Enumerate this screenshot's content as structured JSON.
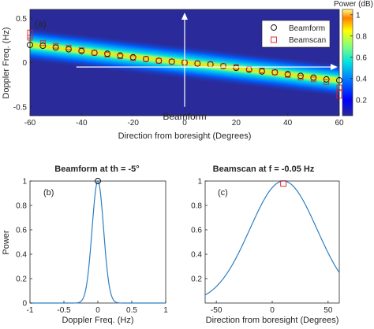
{
  "chart_data": [
    {
      "type": "heatmap",
      "panel_label": "(a)",
      "xlabel": "Direction from boresight (Degrees)",
      "ylabel": "Doppler Freq. (Hz)",
      "xlim": [
        -60,
        60
      ],
      "ylim": [
        -0.6,
        0.6
      ],
      "xticks": [
        -60,
        -40,
        -20,
        0,
        20,
        40,
        60
      ],
      "yticks": [
        -0.5,
        0,
        0.5
      ],
      "colorbar": {
        "title": "Power (dB)",
        "ticks": [
          0.2,
          0.4,
          0.6,
          0.8,
          1
        ],
        "range": [
          0.05,
          1.05
        ]
      },
      "ridge": {
        "x": [
          -60,
          60
        ],
        "y": [
          0.2,
          -0.2
        ]
      },
      "annotations": [
        {
          "text": "Beamform",
          "arrow": "vertical-up",
          "x": 0,
          "y_from": -0.5,
          "y_to": 0.6
        },
        {
          "arrow": "horizontal-right",
          "y": -0.05,
          "x_from": -42,
          "x_to": 60
        }
      ],
      "legend": {
        "location": "top-right",
        "entries": [
          "Beamform",
          "Beamscan"
        ]
      },
      "series": [
        {
          "name": "Beamform",
          "marker": "circle",
          "x": [
            -60,
            -55,
            -50,
            -45,
            -40,
            -35,
            -30,
            -25,
            -20,
            -15,
            -10,
            -5,
            0,
            5,
            10,
            15,
            20,
            25,
            30,
            35,
            40,
            45,
            50,
            55,
            60
          ],
          "y": [
            0.2,
            0.19,
            0.17,
            0.15,
            0.13,
            0.11,
            0.1,
            0.08,
            0.06,
            0.04,
            0.02,
            0.01,
            0,
            -0.01,
            -0.02,
            -0.04,
            -0.06,
            -0.08,
            -0.1,
            -0.11,
            -0.13,
            -0.15,
            -0.17,
            -0.19,
            -0.2
          ]
        },
        {
          "name": "Beamscan",
          "marker": "square",
          "x": [
            -60,
            -55,
            -50,
            -45,
            -40,
            -35,
            -30,
            -25,
            -20,
            -15,
            -10,
            -5,
            0,
            5,
            10,
            15,
            20,
            25,
            30,
            35,
            40,
            45,
            50,
            55,
            60
          ],
          "y": [
            0.28,
            0.22,
            0.19,
            0.17,
            0.14,
            0.11,
            0.09,
            0.07,
            0.05,
            0.04,
            0.02,
            0.01,
            0,
            -0.01,
            -0.02,
            -0.04,
            -0.05,
            -0.07,
            -0.09,
            -0.11,
            -0.14,
            -0.17,
            -0.19,
            -0.22,
            -0.28
          ]
        },
        {
          "name": "Beamscan",
          "marker": "square",
          "x": [
            -60,
            60
          ],
          "y": [
            0.34,
            -0.34
          ]
        }
      ]
    },
    {
      "type": "line",
      "panel_label": "(b)",
      "title": "Beamform at th = -5°",
      "xlabel": "Doppler Freq. (Hz)",
      "ylabel": "Power",
      "xlim": [
        -1,
        1
      ],
      "ylim": [
        0,
        1
      ],
      "xticks": [
        -1,
        -0.5,
        0,
        0.5,
        1
      ],
      "yticks": [
        0,
        0.2,
        0.4,
        0.6,
        0.8,
        1
      ],
      "curve": {
        "type": "gaussian",
        "center": 0,
        "sigma": 0.085
      },
      "peak_marker": {
        "shape": "circle",
        "x": 0,
        "y": 1
      }
    },
    {
      "type": "line",
      "panel_label": "(c)",
      "title": "Beamscan at f = -0.05 Hz",
      "xlabel": "Direction from boresight (Degrees)",
      "ylabel": "",
      "xlim": [
        -60,
        60
      ],
      "ylim": [
        0,
        1
      ],
      "xticks": [
        -50,
        0,
        50
      ],
      "yticks": [
        0.2,
        0.4,
        0.6,
        0.8,
        1
      ],
      "curve": {
        "type": "gaussian",
        "center": 10,
        "sigma": 30
      },
      "peak_marker": {
        "shape": "square",
        "x": 10,
        "y": 0.98
      }
    }
  ]
}
